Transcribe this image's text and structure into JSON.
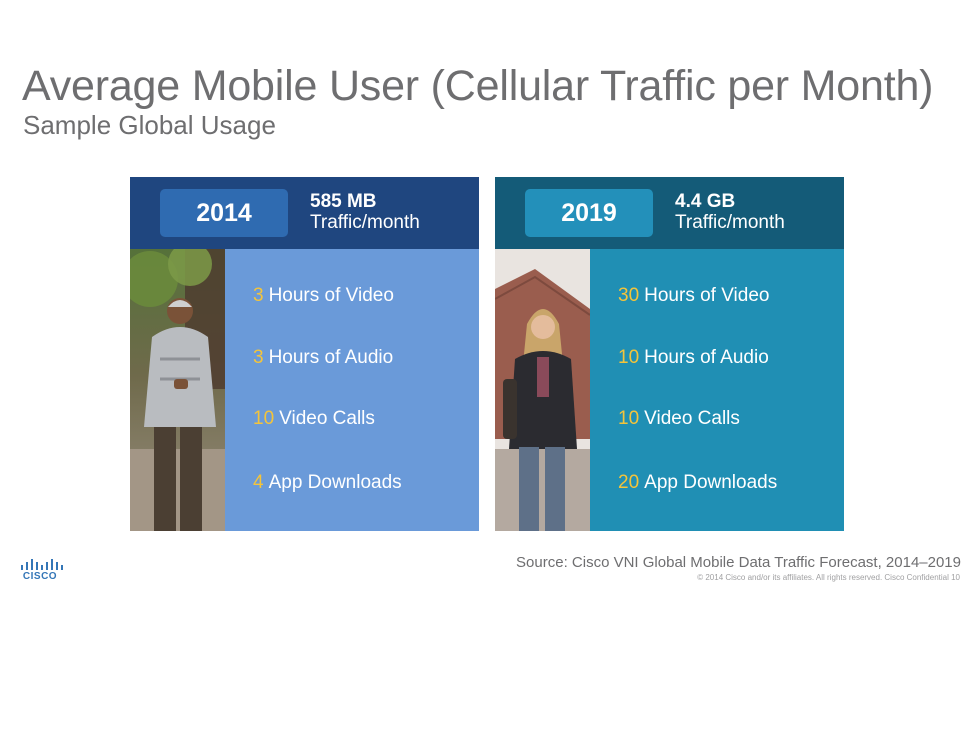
{
  "title": "Average Mobile User (Cellular Traffic per Month)",
  "subtitle": "Sample Global Usage",
  "panels": [
    {
      "year": "2014",
      "traffic_amount": "585 MB",
      "traffic_unit": "Traffic/month",
      "stats": [
        {
          "num": "3",
          "label": "Hours of Video"
        },
        {
          "num": "3",
          "label": "Hours of Audio"
        },
        {
          "num": "10",
          "label": "Video Calls"
        },
        {
          "num": "4",
          "label": "App Downloads"
        }
      ]
    },
    {
      "year": "2019",
      "traffic_amount": "4.4 GB",
      "traffic_unit": "Traffic/month",
      "stats": [
        {
          "num": "30",
          "label": "Hours of Video"
        },
        {
          "num": "10",
          "label": "Hours of Audio"
        },
        {
          "num": "10",
          "label": "Video Calls"
        },
        {
          "num": "20",
          "label": "App Downloads"
        }
      ]
    }
  ],
  "source": "Source: Cisco VNI Global Mobile Data Traffic Forecast, 2014–2019",
  "copyright": "© 2014 Cisco and/or its affiliates. All rights reserved.   Cisco Confidential      10",
  "logo": {
    "word": "CISCO",
    "icon": "cisco-bridge-icon",
    "color": "#3476b7"
  },
  "colors": {
    "highlight_number": "#f4c43a",
    "left_header": "#1f467f",
    "right_header": "#145b78",
    "left_stats": "#6a9ad9",
    "right_stats": "#208fb4"
  }
}
